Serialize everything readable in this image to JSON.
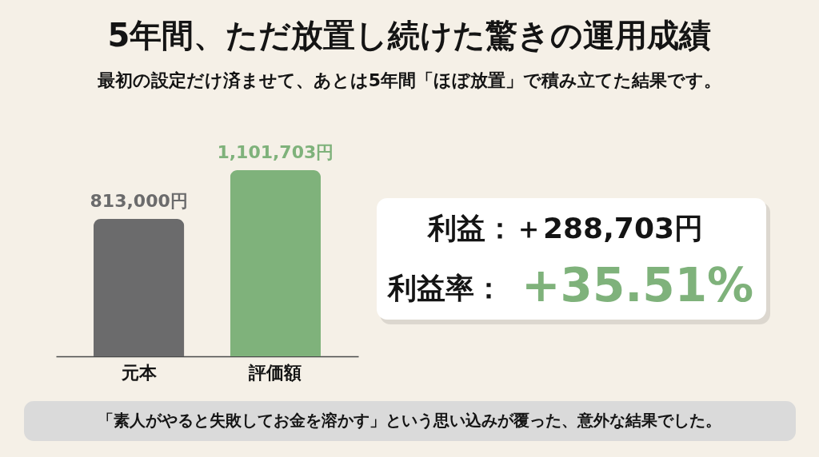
{
  "chart_data": {
    "type": "bar",
    "title": "5年間、ただ放置し続けた驚きの運用成績",
    "subtitle": "最初の設定だけ済ませて、あとは5年間「ほぼ放置」で積み立てた結果です。",
    "categories": [
      "元本",
      "評価額"
    ],
    "values": [
      813000,
      1101703
    ],
    "colors": [
      "#6b6b6c",
      "#7fb27b"
    ],
    "value_labels": [
      "813,000円",
      "1,101,703円"
    ],
    "annotations": [
      "利益：＋288,703円",
      "利益率：",
      "+35.51%",
      "「素人がやると失敗してお金を溶かす」という思い込みが覆った、意外な結果でした。"
    ]
  }
}
